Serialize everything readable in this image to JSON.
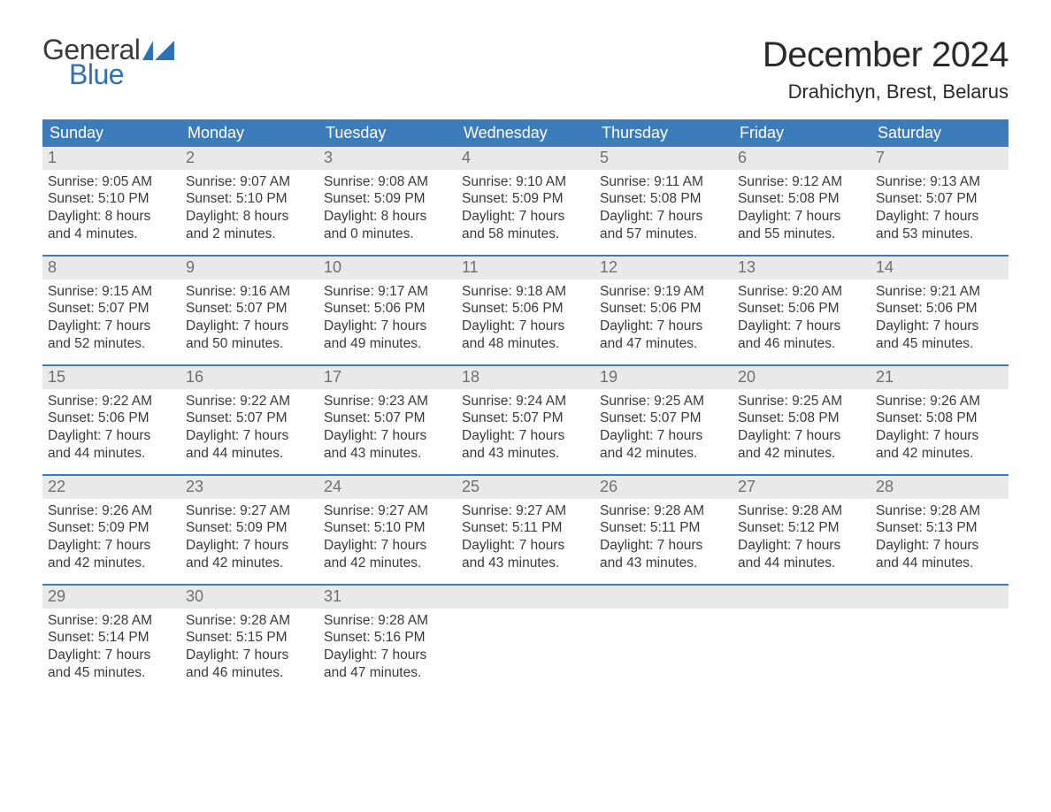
{
  "brand": {
    "word1": "General",
    "word2": "Blue",
    "flag_color": "#2b72b8"
  },
  "title": "December 2024",
  "location": "Drahichyn, Brest, Belarus",
  "colors": {
    "header_bg": "#3d7cba",
    "header_text": "#ffffff",
    "daynum_bg": "#e9e9e9",
    "daynum_text": "#707070",
    "body_text": "#3a3a3a",
    "week_border": "#3d7cba",
    "page_bg": "#ffffff"
  },
  "typography": {
    "title_fontsize": 40,
    "location_fontsize": 22,
    "dow_fontsize": 18,
    "daynum_fontsize": 18,
    "body_fontsize": 15.5
  },
  "days_of_week": [
    "Sunday",
    "Monday",
    "Tuesday",
    "Wednesday",
    "Thursday",
    "Friday",
    "Saturday"
  ],
  "weeks": [
    [
      {
        "n": "1",
        "sunrise": "Sunrise: 9:05 AM",
        "sunset": "Sunset: 5:10 PM",
        "d1": "Daylight: 8 hours",
        "d2": "and 4 minutes."
      },
      {
        "n": "2",
        "sunrise": "Sunrise: 9:07 AM",
        "sunset": "Sunset: 5:10 PM",
        "d1": "Daylight: 8 hours",
        "d2": "and 2 minutes."
      },
      {
        "n": "3",
        "sunrise": "Sunrise: 9:08 AM",
        "sunset": "Sunset: 5:09 PM",
        "d1": "Daylight: 8 hours",
        "d2": "and 0 minutes."
      },
      {
        "n": "4",
        "sunrise": "Sunrise: 9:10 AM",
        "sunset": "Sunset: 5:09 PM",
        "d1": "Daylight: 7 hours",
        "d2": "and 58 minutes."
      },
      {
        "n": "5",
        "sunrise": "Sunrise: 9:11 AM",
        "sunset": "Sunset: 5:08 PM",
        "d1": "Daylight: 7 hours",
        "d2": "and 57 minutes."
      },
      {
        "n": "6",
        "sunrise": "Sunrise: 9:12 AM",
        "sunset": "Sunset: 5:08 PM",
        "d1": "Daylight: 7 hours",
        "d2": "and 55 minutes."
      },
      {
        "n": "7",
        "sunrise": "Sunrise: 9:13 AM",
        "sunset": "Sunset: 5:07 PM",
        "d1": "Daylight: 7 hours",
        "d2": "and 53 minutes."
      }
    ],
    [
      {
        "n": "8",
        "sunrise": "Sunrise: 9:15 AM",
        "sunset": "Sunset: 5:07 PM",
        "d1": "Daylight: 7 hours",
        "d2": "and 52 minutes."
      },
      {
        "n": "9",
        "sunrise": "Sunrise: 9:16 AM",
        "sunset": "Sunset: 5:07 PM",
        "d1": "Daylight: 7 hours",
        "d2": "and 50 minutes."
      },
      {
        "n": "10",
        "sunrise": "Sunrise: 9:17 AM",
        "sunset": "Sunset: 5:06 PM",
        "d1": "Daylight: 7 hours",
        "d2": "and 49 minutes."
      },
      {
        "n": "11",
        "sunrise": "Sunrise: 9:18 AM",
        "sunset": "Sunset: 5:06 PM",
        "d1": "Daylight: 7 hours",
        "d2": "and 48 minutes."
      },
      {
        "n": "12",
        "sunrise": "Sunrise: 9:19 AM",
        "sunset": "Sunset: 5:06 PM",
        "d1": "Daylight: 7 hours",
        "d2": "and 47 minutes."
      },
      {
        "n": "13",
        "sunrise": "Sunrise: 9:20 AM",
        "sunset": "Sunset: 5:06 PM",
        "d1": "Daylight: 7 hours",
        "d2": "and 46 minutes."
      },
      {
        "n": "14",
        "sunrise": "Sunrise: 9:21 AM",
        "sunset": "Sunset: 5:06 PM",
        "d1": "Daylight: 7 hours",
        "d2": "and 45 minutes."
      }
    ],
    [
      {
        "n": "15",
        "sunrise": "Sunrise: 9:22 AM",
        "sunset": "Sunset: 5:06 PM",
        "d1": "Daylight: 7 hours",
        "d2": "and 44 minutes."
      },
      {
        "n": "16",
        "sunrise": "Sunrise: 9:22 AM",
        "sunset": "Sunset: 5:07 PM",
        "d1": "Daylight: 7 hours",
        "d2": "and 44 minutes."
      },
      {
        "n": "17",
        "sunrise": "Sunrise: 9:23 AM",
        "sunset": "Sunset: 5:07 PM",
        "d1": "Daylight: 7 hours",
        "d2": "and 43 minutes."
      },
      {
        "n": "18",
        "sunrise": "Sunrise: 9:24 AM",
        "sunset": "Sunset: 5:07 PM",
        "d1": "Daylight: 7 hours",
        "d2": "and 43 minutes."
      },
      {
        "n": "19",
        "sunrise": "Sunrise: 9:25 AM",
        "sunset": "Sunset: 5:07 PM",
        "d1": "Daylight: 7 hours",
        "d2": "and 42 minutes."
      },
      {
        "n": "20",
        "sunrise": "Sunrise: 9:25 AM",
        "sunset": "Sunset: 5:08 PM",
        "d1": "Daylight: 7 hours",
        "d2": "and 42 minutes."
      },
      {
        "n": "21",
        "sunrise": "Sunrise: 9:26 AM",
        "sunset": "Sunset: 5:08 PM",
        "d1": "Daylight: 7 hours",
        "d2": "and 42 minutes."
      }
    ],
    [
      {
        "n": "22",
        "sunrise": "Sunrise: 9:26 AM",
        "sunset": "Sunset: 5:09 PM",
        "d1": "Daylight: 7 hours",
        "d2": "and 42 minutes."
      },
      {
        "n": "23",
        "sunrise": "Sunrise: 9:27 AM",
        "sunset": "Sunset: 5:09 PM",
        "d1": "Daylight: 7 hours",
        "d2": "and 42 minutes."
      },
      {
        "n": "24",
        "sunrise": "Sunrise: 9:27 AM",
        "sunset": "Sunset: 5:10 PM",
        "d1": "Daylight: 7 hours",
        "d2": "and 42 minutes."
      },
      {
        "n": "25",
        "sunrise": "Sunrise: 9:27 AM",
        "sunset": "Sunset: 5:11 PM",
        "d1": "Daylight: 7 hours",
        "d2": "and 43 minutes."
      },
      {
        "n": "26",
        "sunrise": "Sunrise: 9:28 AM",
        "sunset": "Sunset: 5:11 PM",
        "d1": "Daylight: 7 hours",
        "d2": "and 43 minutes."
      },
      {
        "n": "27",
        "sunrise": "Sunrise: 9:28 AM",
        "sunset": "Sunset: 5:12 PM",
        "d1": "Daylight: 7 hours",
        "d2": "and 44 minutes."
      },
      {
        "n": "28",
        "sunrise": "Sunrise: 9:28 AM",
        "sunset": "Sunset: 5:13 PM",
        "d1": "Daylight: 7 hours",
        "d2": "and 44 minutes."
      }
    ],
    [
      {
        "n": "29",
        "sunrise": "Sunrise: 9:28 AM",
        "sunset": "Sunset: 5:14 PM",
        "d1": "Daylight: 7 hours",
        "d2": "and 45 minutes."
      },
      {
        "n": "30",
        "sunrise": "Sunrise: 9:28 AM",
        "sunset": "Sunset: 5:15 PM",
        "d1": "Daylight: 7 hours",
        "d2": "and 46 minutes."
      },
      {
        "n": "31",
        "sunrise": "Sunrise: 9:28 AM",
        "sunset": "Sunset: 5:16 PM",
        "d1": "Daylight: 7 hours",
        "d2": "and 47 minutes."
      },
      null,
      null,
      null,
      null
    ]
  ]
}
